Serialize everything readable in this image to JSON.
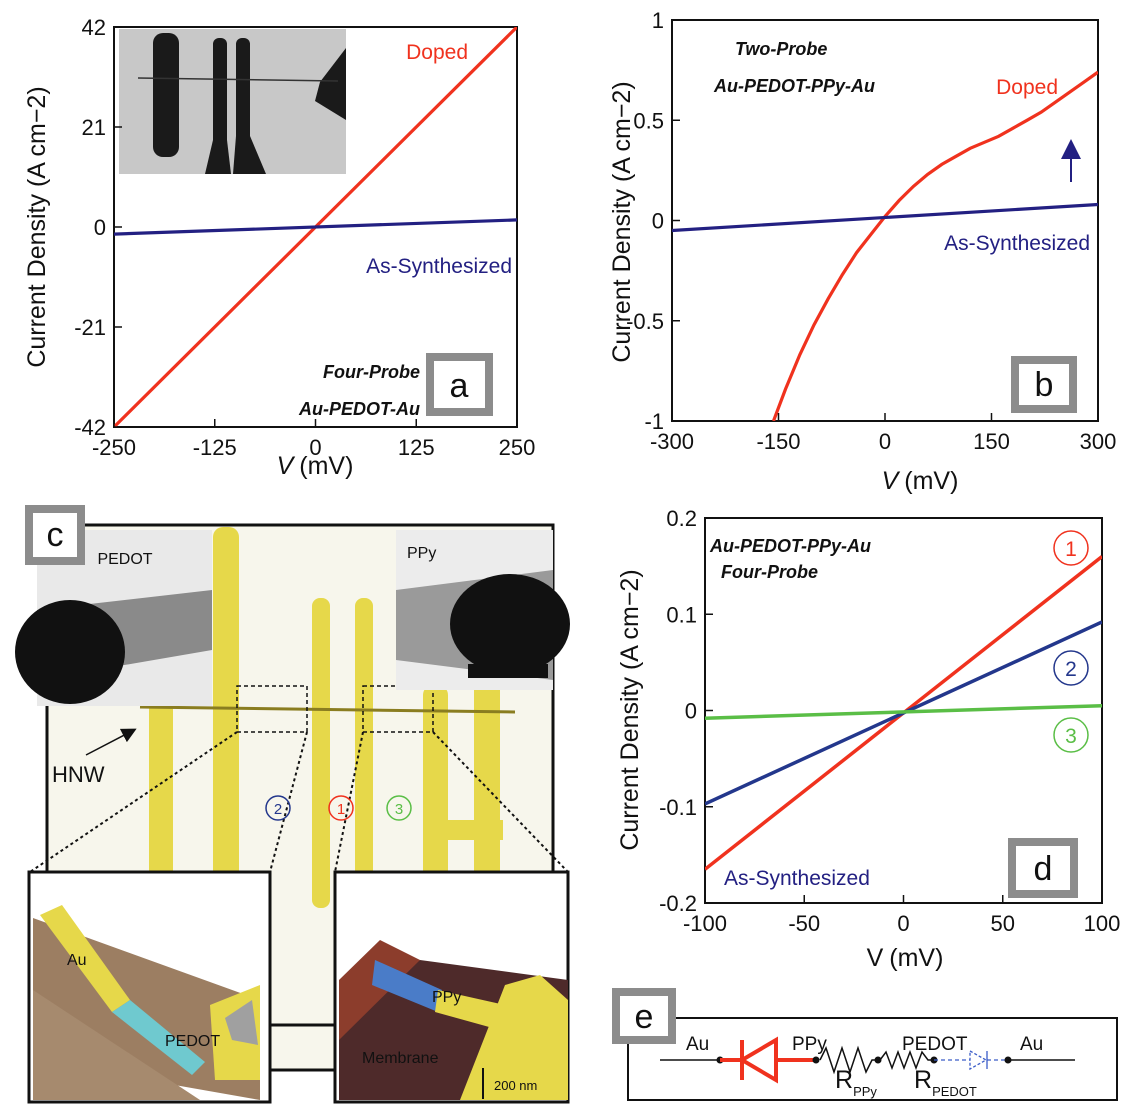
{
  "colors": {
    "doped": "#f0321e",
    "as_synthesized": "#232082",
    "series2": "#23378c",
    "series3": "#5abe46",
    "gold": "#e6d84a",
    "badge_gray": "#8c8c8c"
  },
  "chart_data": [
    {
      "panel": "a",
      "type": "line",
      "xlabel_var": "V",
      "xlabel_unit": "(mV)",
      "ylabel": "Current Density (A cm−2)",
      "xlim": [
        -250,
        250
      ],
      "ylim": [
        -42,
        42
      ],
      "xticks": [
        "-250",
        "-125",
        "0",
        "125",
        "250"
      ],
      "yticks": [
        "42",
        "21",
        "0",
        "-21",
        "-42"
      ],
      "annotation_line1": "Four-Probe",
      "annotation_line2": "Au-PEDOT-Au",
      "series": [
        {
          "name": "Doped",
          "color_key": "doped",
          "x": [
            -250,
            250
          ],
          "y": [
            -42,
            42
          ]
        },
        {
          "name": "As-Synthesized",
          "color_key": "as_synthesized",
          "x": [
            -250,
            250
          ],
          "y": [
            -1.5,
            1.5
          ]
        }
      ]
    },
    {
      "panel": "b",
      "type": "line",
      "xlabel_var": "V",
      "xlabel_unit": "(mV)",
      "ylabel": "Current Density (A cm−2)",
      "xlim": [
        -300,
        300
      ],
      "ylim": [
        -1,
        1
      ],
      "xticks": [
        "-300",
        "-150",
        "0",
        "150",
        "300"
      ],
      "yticks": [
        "1",
        "0.5",
        "0",
        "-0.5",
        "-1"
      ],
      "annotation_line1": "Two-Probe",
      "annotation_line2": "Au-PEDOT-PPy-Au",
      "series": [
        {
          "name": "Doped",
          "color_key": "doped",
          "x": [
            -157,
            -140,
            -120,
            -100,
            -80,
            -60,
            -40,
            -20,
            0,
            20,
            40,
            60,
            80,
            100,
            120,
            140,
            160,
            180,
            200,
            220,
            240,
            260,
            280,
            300
          ],
          "y": [
            -1.0,
            -0.84,
            -0.67,
            -0.52,
            -0.39,
            -0.27,
            -0.16,
            -0.07,
            0.02,
            0.1,
            0.17,
            0.23,
            0.28,
            0.32,
            0.36,
            0.39,
            0.42,
            0.46,
            0.5,
            0.54,
            0.59,
            0.64,
            0.69,
            0.74
          ]
        },
        {
          "name": "As-Synthesized",
          "color_key": "as_synthesized",
          "x": [
            -300,
            300
          ],
          "y": [
            -0.05,
            0.08
          ]
        }
      ]
    },
    {
      "panel": "d",
      "type": "line",
      "xlabel_var": "V",
      "xlabel_unit": "(mV)",
      "ylabel": "Current Density (A cm−2)",
      "xlim": [
        -100,
        100
      ],
      "ylim": [
        -0.2,
        0.2
      ],
      "xticks": [
        "-100",
        "-50",
        "0",
        "50",
        "100"
      ],
      "yticks": [
        "0.2",
        "0.1",
        "0",
        "-0.1",
        "-0.2"
      ],
      "annotation_line1": "Au-PEDOT-PPy-Au",
      "annotation_line2": "Four-Probe",
      "footer_label": "As-Synthesized",
      "series": [
        {
          "name": "1",
          "color_key": "doped",
          "x": [
            -100,
            100
          ],
          "y": [
            -0.165,
            0.16
          ]
        },
        {
          "name": "2",
          "color_key": "series2",
          "x": [
            -100,
            100
          ],
          "y": [
            -0.097,
            0.092
          ]
        },
        {
          "name": "3",
          "color_key": "series3",
          "x": [
            -100,
            100
          ],
          "y": [
            -0.008,
            0.005
          ]
        }
      ]
    }
  ],
  "panel_c": {
    "letter": "c",
    "inset_left_label": "PEDOT",
    "inset_right_label": "PPy",
    "hnw_label": "HNW",
    "segment_labels": [
      "2",
      "1",
      "3"
    ],
    "afm_left_labels": [
      "Au",
      "PEDOT"
    ],
    "afm_right_labels": [
      "PPy",
      "Membrane"
    ],
    "scale_label": "200 nm"
  },
  "panel_e": {
    "letter": "e",
    "labels": [
      "Au",
      "PPy",
      "PEDOT",
      "Au"
    ],
    "r_ppy_main": "R",
    "r_ppy_sub": "PPy",
    "r_pedot_main": "R",
    "r_pedot_sub": "PEDOT"
  }
}
